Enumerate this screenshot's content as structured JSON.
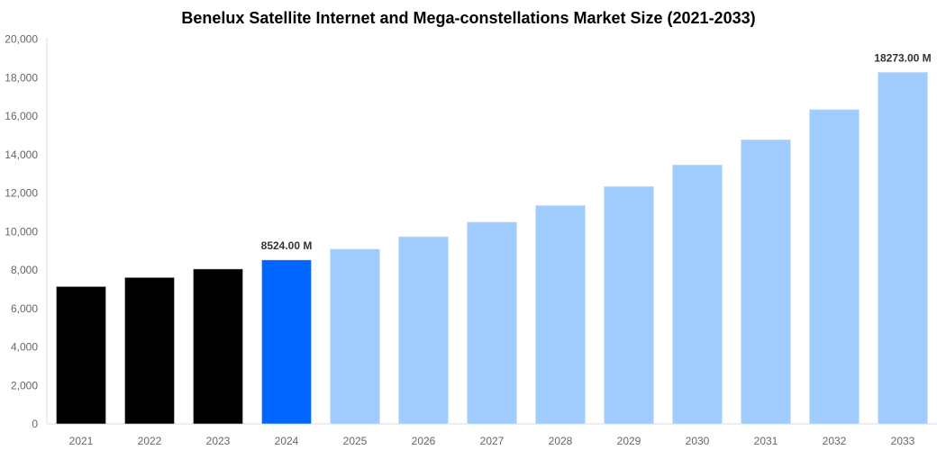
{
  "chart_data": {
    "type": "bar",
    "title": "Benelux Satellite Internet and Mega-constellations Market Size (2021-2033)",
    "xlabel": "",
    "ylabel": "",
    "categories": [
      "2021",
      "2022",
      "2023",
      "2024",
      "2025",
      "2026",
      "2027",
      "2028",
      "2029",
      "2030",
      "2031",
      "2032",
      "2033"
    ],
    "values": [
      7140,
      7610,
      8050,
      8524,
      9090,
      9730,
      10490,
      11350,
      12340,
      13460,
      14770,
      16340,
      18273
    ],
    "ylim": [
      0,
      20000
    ],
    "yticks": [
      "0",
      "2,000",
      "4,000",
      "6,000",
      "8,000",
      "10,000",
      "12,000",
      "14,000",
      "16,000",
      "18,000",
      "20,000"
    ],
    "data_labels": {
      "2024": "8524.00 M",
      "2033": "18273.00 M"
    },
    "colors": {
      "historical": "#000000",
      "base_year": "#0066ff",
      "forecast": "#a0cdfd"
    },
    "grid": false,
    "legend": "none"
  }
}
